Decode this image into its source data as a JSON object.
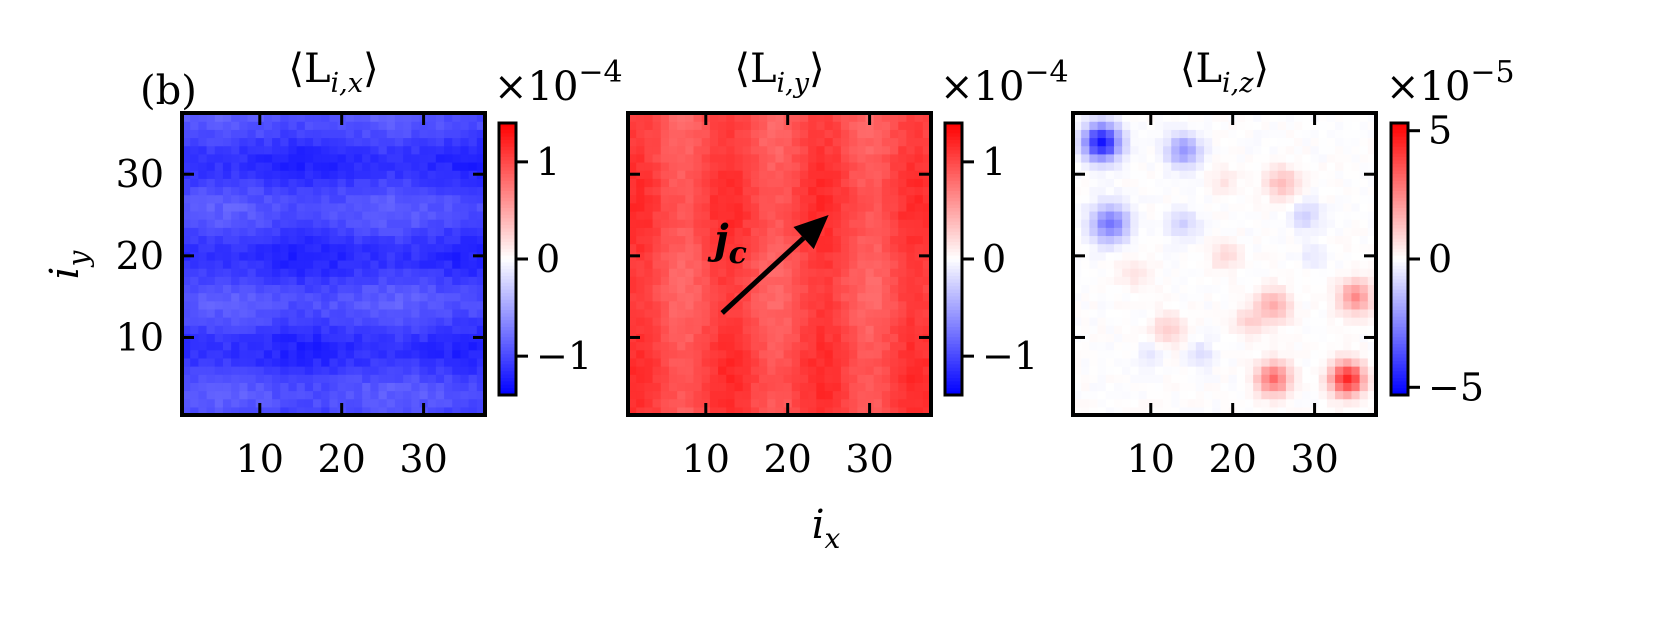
{
  "panel_label": "(b)",
  "shared": {
    "xlabel": "i",
    "xlabel_sub": "x",
    "ylabel": "i",
    "ylabel_sub": "y"
  },
  "colors": {
    "negative": "#0000ff",
    "zero": "#ffffff",
    "positive": "#ff0000"
  },
  "chart_data": [
    {
      "type": "heatmap",
      "title_prefix": "⟨L",
      "title_sub": "i,x",
      "title_suffix": "⟩",
      "xlim": [
        0.5,
        37.5
      ],
      "ylim": [
        0.5,
        37.5
      ],
      "xticks": [
        10,
        20,
        30
      ],
      "yticks": [
        10,
        20,
        30
      ],
      "show_yticklabels": true,
      "colorbar": {
        "range": [
          -1.4,
          1.4
        ],
        "ticks": [
          1,
          0,
          -1
        ],
        "tick_labels": [
          "1",
          "0",
          "−1"
        ],
        "multiplier_base": "×10",
        "multiplier_exp": "−4"
      },
      "field": {
        "mean": -1.05,
        "noise": 0.12,
        "bands": "horizontal",
        "band_amp": 0.12
      }
    },
    {
      "type": "heatmap",
      "title_prefix": "⟨L",
      "title_sub": "i,y",
      "title_suffix": "⟩",
      "xlim": [
        0.5,
        37.5
      ],
      "ylim": [
        0.5,
        37.5
      ],
      "xticks": [
        10,
        20,
        30
      ],
      "yticks": [
        10,
        20,
        30
      ],
      "show_yticklabels": false,
      "colorbar": {
        "range": [
          -1.4,
          1.4
        ],
        "ticks": [
          1,
          0,
          -1
        ],
        "tick_labels": [
          "1",
          "0",
          "−1"
        ],
        "multiplier_base": "×10",
        "multiplier_exp": "−4"
      },
      "field": {
        "mean": 1.0,
        "noise": 0.1,
        "bands": "vertical",
        "band_amp": 0.12
      },
      "annotation": {
        "text": "j",
        "sub": "c",
        "arrow_from": [
          12,
          13
        ],
        "arrow_to": [
          25,
          25
        ]
      }
    },
    {
      "type": "heatmap",
      "title_prefix": "⟨L",
      "title_sub": "i,z",
      "title_suffix": "⟩",
      "xlim": [
        0.5,
        37.5
      ],
      "ylim": [
        0.5,
        37.5
      ],
      "xticks": [
        10,
        20,
        30
      ],
      "yticks": [
        10,
        20,
        30
      ],
      "show_yticklabels": false,
      "colorbar": {
        "range": [
          -5.3,
          5.3
        ],
        "ticks": [
          5,
          0,
          -5
        ],
        "tick_labels": [
          "5",
          "0",
          "−5"
        ],
        "multiplier_base": "×10",
        "multiplier_exp": "−5"
      },
      "field": {
        "mean": 0,
        "noise": 0.25,
        "blobs": [
          [
            4,
            34,
            -5.0,
            2.2
          ],
          [
            14,
            33,
            -2.2,
            2.0
          ],
          [
            5,
            24,
            -2.8,
            2.3
          ],
          [
            14,
            24,
            -1.0,
            1.8
          ],
          [
            29,
            25,
            -1.0,
            1.8
          ],
          [
            26,
            29,
            1.5,
            1.9
          ],
          [
            19,
            29,
            0.6,
            1.6
          ],
          [
            8,
            18,
            0.5,
            2.0
          ],
          [
            19,
            20,
            0.8,
            1.8
          ],
          [
            25,
            14,
            1.8,
            2.0
          ],
          [
            35,
            15,
            2.4,
            2.0
          ],
          [
            12,
            11,
            1.0,
            2.0
          ],
          [
            22,
            12,
            0.9,
            1.8
          ],
          [
            16,
            8,
            -0.7,
            1.6
          ],
          [
            25,
            5,
            3.0,
            2.0
          ],
          [
            34,
            5,
            4.6,
            2.0
          ],
          [
            10,
            8,
            -0.5,
            1.6
          ],
          [
            30,
            20,
            -0.5,
            1.6
          ]
        ]
      }
    }
  ]
}
